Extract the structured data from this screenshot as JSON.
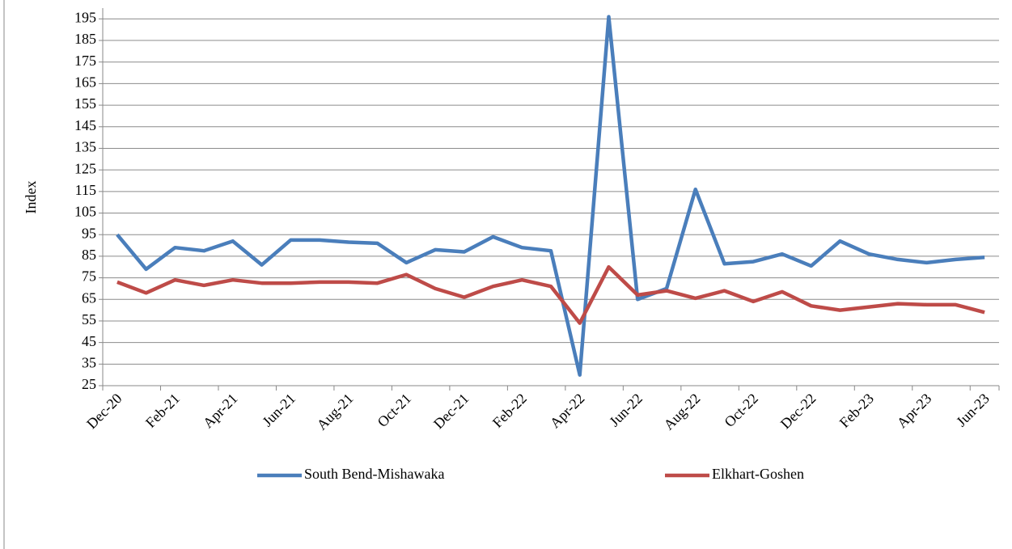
{
  "chart_data": {
    "type": "line",
    "y_label": "Index",
    "categories": [
      "Dec-20",
      null,
      "Feb-21",
      null,
      "Apr-21",
      null,
      "Jun-21",
      null,
      "Aug-21",
      null,
      "Oct-21",
      null,
      "Dec-21",
      null,
      "Feb-22",
      null,
      "Apr-22",
      null,
      "Jun-22",
      null,
      "Aug-22",
      null,
      "Oct-22",
      null,
      "Dec-22",
      null,
      "Feb-23",
      null,
      "Apr-23",
      null,
      "Jun-23"
    ],
    "series": [
      {
        "name": "South Bend-Mishawaka",
        "color": "#4a7ebb",
        "values": [
          95,
          79,
          89,
          87.5,
          92,
          81,
          92.5,
          92.5,
          91.5,
          91,
          82,
          88,
          87,
          94,
          89,
          87.5,
          30,
          196,
          65,
          70,
          116,
          81.5,
          82.5,
          86,
          80.5,
          92,
          86,
          83.5,
          82,
          83.5,
          84.5
        ]
      },
      {
        "name": "Elkhart-Goshen",
        "color": "#be4b48",
        "values": [
          73,
          68,
          74,
          71.5,
          74,
          72.5,
          72.5,
          73,
          73,
          72.5,
          76.5,
          70,
          66,
          71,
          74,
          71,
          54,
          80,
          67,
          69,
          65.5,
          69,
          64,
          68.5,
          62,
          60,
          61.5,
          63,
          62.5,
          62.5,
          59
        ]
      }
    ],
    "ylim": [
      25,
      200
    ],
    "yticks": [
      25,
      35,
      45,
      55,
      65,
      75,
      85,
      95,
      105,
      115,
      125,
      135,
      145,
      155,
      165,
      175,
      185,
      195
    ],
    "grid": true,
    "legend": "bottom"
  }
}
